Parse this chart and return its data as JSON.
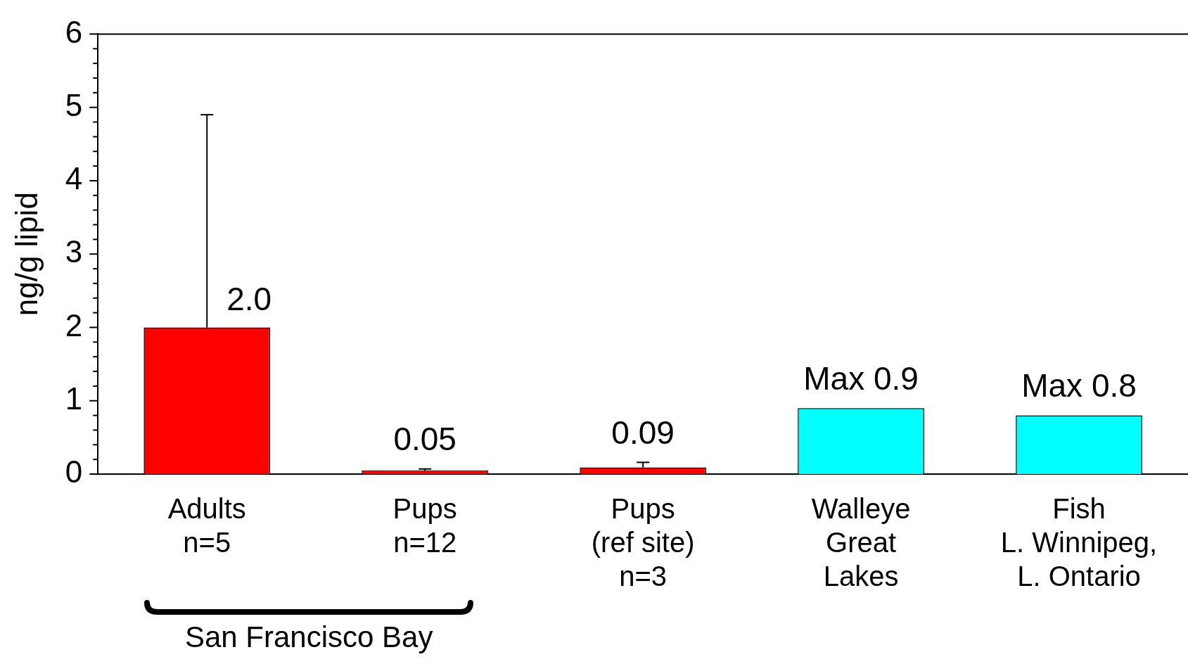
{
  "chart_data": {
    "type": "bar",
    "ylabel": "ng/g lipid",
    "categories": [
      "Adults\nn=5",
      "Pups\nn=12",
      "Pups\n(ref site)\nn=3",
      "Walleye\nGreat\nLakes",
      "Fish\nL. Winnipeg,\nL. Ontario"
    ],
    "values": [
      2.0,
      0.05,
      0.09,
      0.9,
      0.8
    ],
    "colors": [
      "#ff0000",
      "#ff0000",
      "#ff0000",
      "#00ffff",
      "#00ffff"
    ],
    "errors": [
      [
        2.0,
        4.9
      ],
      [
        0.05,
        0.07
      ],
      [
        0.09,
        0.16
      ],
      null,
      null
    ],
    "value_labels": [
      "2.0",
      "0.05",
      "0.09",
      "Max 0.9",
      "Max 0.8"
    ],
    "ylim": [
      0,
      6
    ],
    "yticks": [
      0,
      {
        "value": 0.2,
        "label": null
      },
      {
        "value": 0.4,
        "label": null
      },
      {
        "value": 0.6,
        "label": null
      },
      {
        "value": 0.8,
        "label": null
      },
      1,
      {
        "value": 1.2,
        "label": null
      },
      {
        "value": 1.4,
        "label": null
      },
      {
        "value": 1.6,
        "label": null
      },
      {
        "value": 1.8,
        "label": null
      },
      2,
      {
        "value": 2.2,
        "label": null
      },
      {
        "value": 2.4,
        "label": null
      },
      {
        "value": 2.6,
        "label": null
      },
      {
        "value": 2.8,
        "label": null
      },
      3,
      {
        "value": 3.2,
        "label": null
      },
      {
        "value": 3.4,
        "label": null
      },
      {
        "value": 3.6,
        "label": null
      },
      {
        "value": 3.8,
        "label": null
      },
      4,
      {
        "value": 4.2,
        "label": null
      },
      {
        "value": 4.4,
        "label": null
      },
      {
        "value": 4.6,
        "label": null
      },
      {
        "value": 4.8,
        "label": null
      },
      5,
      {
        "value": 5.2,
        "label": null
      },
      {
        "value": 5.4,
        "label": null
      },
      {
        "value": 5.6,
        "label": null
      },
      {
        "value": 5.8,
        "label": null
      },
      6
    ],
    "grid": false,
    "legend": false,
    "annotations": [
      "San Francisco Bay"
    ]
  }
}
